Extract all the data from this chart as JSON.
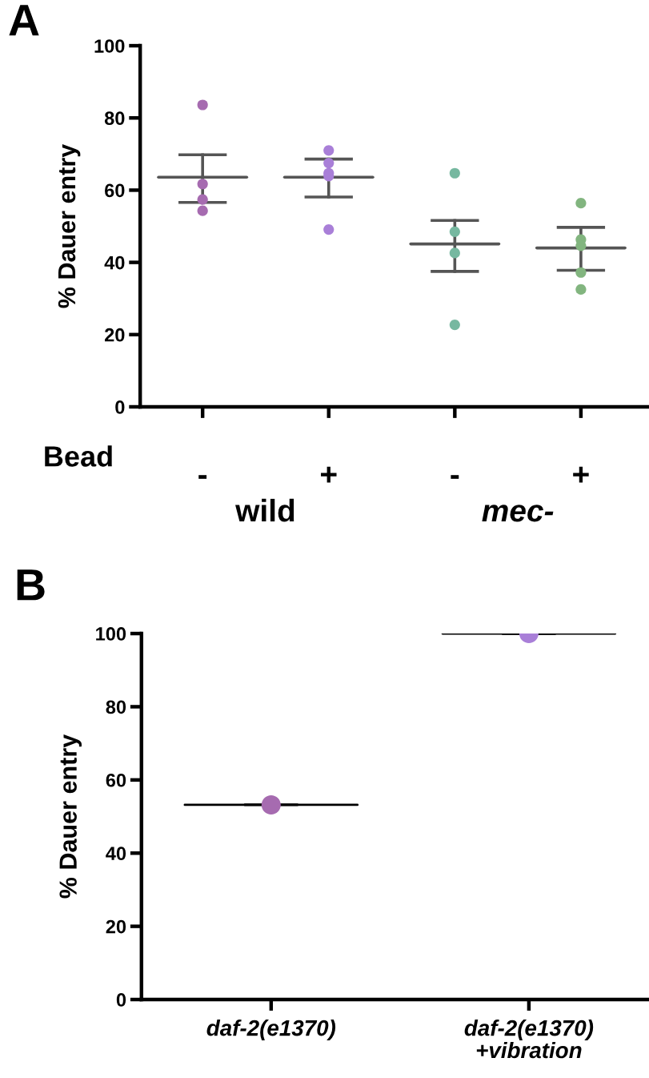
{
  "chart_data": [
    {
      "type": "scatter",
      "title": "A",
      "ylabel": "% Dauer entry",
      "categories": [
        "-",
        "+",
        "-",
        "+"
      ],
      "ylim": [
        0,
        100
      ],
      "yticks": [
        0,
        20,
        40,
        60,
        80,
        100
      ],
      "grid": false,
      "legend": false,
      "series": [
        {
          "type": "scatter",
          "marker": "circle",
          "colors": [
            "#a66bb0",
            "#a97fd8",
            "#76b8a0",
            "#82b57f"
          ],
          "values": [
            83.6,
            71.0,
            64.7,
            56.4
          ]
        },
        {
          "type": "scatter",
          "marker": "circle",
          "colors": [
            "#a66bb0",
            "#a97fd8",
            "#76b8a0",
            "#82b57f"
          ],
          "values": [
            61.7,
            67.5,
            48.5,
            46.3
          ]
        },
        {
          "type": "scatter",
          "marker": "circle",
          "colors": [
            "#a66bb0",
            "#a97fd8",
            "#76b8a0",
            "#82b57f"
          ],
          "values": [
            57.4,
            64.7,
            42.6,
            44.6
          ]
        },
        {
          "type": "scatter",
          "marker": "circle",
          "colors": [
            "#a66bb0",
            "#a97fd8",
            "#76b8a0",
            "#82b57f"
          ],
          "values": [
            54.3,
            63.9,
            22.7,
            37.2
          ]
        },
        {
          "type": "scatter",
          "marker": "circle",
          "colors": [
            "#a66bb0",
            "#a97fd8",
            "#76b8a0",
            "#82b57f"
          ],
          "values": [
            null,
            49.1,
            null,
            32.5
          ]
        },
        {
          "type": "box",
          "color": "#555555",
          "boxes": [
            {
              "low": 56.6,
              "q1": 63.6,
              "median": 63.6,
              "q3": 63.6,
              "high": 69.8
            },
            {
              "low": 58.1,
              "q1": 63.6,
              "median": 63.6,
              "q3": 63.6,
              "high": 68.6
            },
            {
              "low": 37.5,
              "q1": 45.1,
              "median": 45.1,
              "q3": 45.1,
              "high": 51.6
            },
            {
              "low": 37.8,
              "q1": 44.0,
              "median": 44.0,
              "q3": 44.0,
              "high": 49.7
            }
          ]
        }
      ],
      "annotations": [
        "Bead",
        "wild",
        "mec-"
      ]
    },
    {
      "type": "scatter",
      "title": "B",
      "ylabel": "% Dauer entry",
      "categories": [
        "daf-2(e1370)",
        "daf-2(e1370)\n+vibration"
      ],
      "ylim": [
        0,
        100
      ],
      "yticks": [
        0,
        20,
        40,
        60,
        80,
        100
      ],
      "grid": false,
      "legend": false,
      "series": [
        {
          "type": "scatter",
          "marker": "circle",
          "colors": [
            "#a66bb0",
            "#a97fd8"
          ],
          "values": [
            53.2,
            100
          ]
        },
        {
          "type": "box",
          "color": "#000000",
          "boxes": [
            {
              "low": 53.2,
              "q1": 53.2,
              "median": 53.2,
              "q3": 53.2,
              "high": 53.2
            },
            {
              "low": 100,
              "q1": 100,
              "median": 100,
              "q3": 100,
              "high": 100
            }
          ]
        }
      ]
    }
  ]
}
